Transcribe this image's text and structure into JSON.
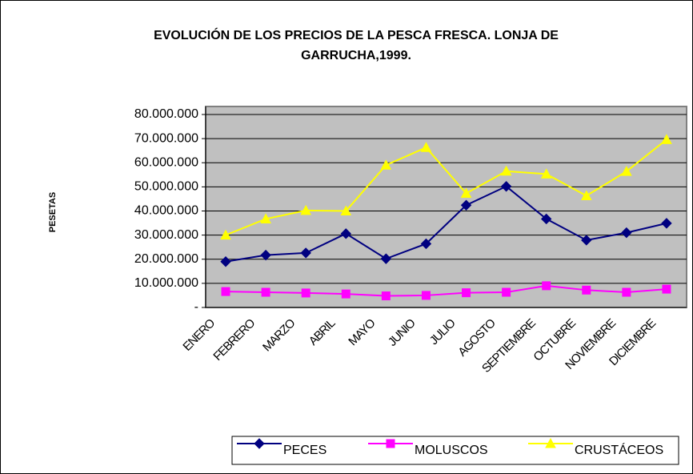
{
  "chart_data": {
    "type": "line",
    "title": [
      "EVOLUCIÓN DE LOS PRECIOS DE LA PESCA FRESCA. LONJA DE",
      "GARRUCHA,1999."
    ],
    "y_label": "PESETAS",
    "categories": [
      "ENERO",
      "FEBRERO",
      "MARZO",
      "ABRIL",
      "MAYO",
      "JUNIO",
      "JULIO",
      "AGOSTO",
      "SEPTIEMBRE",
      "OCTUBRE",
      "NOVIEMBRE",
      "DICIEMBRE"
    ],
    "series": [
      {
        "name": "PECES",
        "color": "#000080",
        "marker": "diamond",
        "values": [
          19000000,
          21700000,
          22600000,
          30600000,
          20200000,
          26400000,
          42400000,
          50200000,
          36700000,
          27900000,
          31000000,
          34900000
        ]
      },
      {
        "name": "MOLUSCOS",
        "color": "#FF00FF",
        "marker": "square",
        "values": [
          6600000,
          6300000,
          6000000,
          5600000,
          4800000,
          5000000,
          6100000,
          6300000,
          9000000,
          7200000,
          6300000,
          7600000
        ]
      },
      {
        "name": "CRUSTÁCEOS",
        "color": "#FFFF00",
        "marker": "triangle",
        "values": [
          30000000,
          36700000,
          40200000,
          40000000,
          59000000,
          66300000,
          47300000,
          56500000,
          55300000,
          46300000,
          56400000,
          69600000
        ]
      }
    ],
    "ylim": [
      0,
      80000000
    ],
    "yticks": [
      {
        "value": 0,
        "label": "-"
      },
      {
        "value": 10000000,
        "label": "10.000.000"
      },
      {
        "value": 20000000,
        "label": "20.000.000"
      },
      {
        "value": 30000000,
        "label": "30.000.000"
      },
      {
        "value": 40000000,
        "label": "40.000.000"
      },
      {
        "value": 50000000,
        "label": "50.000.000"
      },
      {
        "value": 60000000,
        "label": "60.000.000"
      },
      {
        "value": 70000000,
        "label": "70.000.000"
      },
      {
        "value": 80000000,
        "label": "80.000.000"
      }
    ],
    "grid": true,
    "legend": "bottom"
  }
}
